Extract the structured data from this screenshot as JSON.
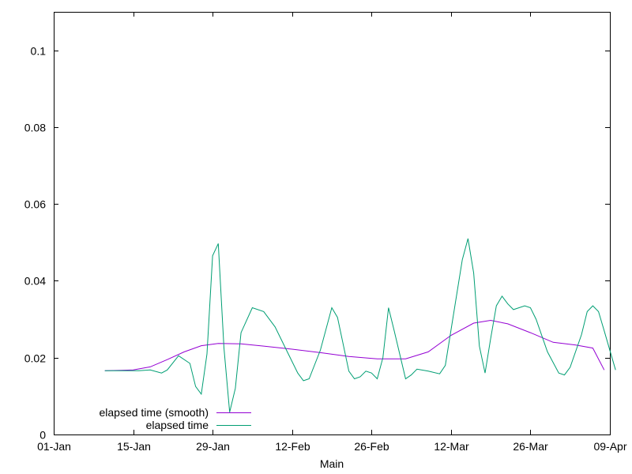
{
  "chart_data": {
    "type": "line",
    "title": "",
    "xlabel": "Main",
    "ylabel": "",
    "xlim": [
      "2021-01-01",
      "2021-04-09"
    ],
    "ylim": [
      0,
      0.11
    ],
    "x_tick_labels": [
      "01-Jan",
      "15-Jan",
      "29-Jan",
      "12-Feb",
      "26-Feb",
      "12-Mar",
      "26-Mar",
      "09-Apr"
    ],
    "x_ticks": [
      "2021-01-01",
      "2021-01-15",
      "2021-01-29",
      "2021-02-12",
      "2021-02-26",
      "2021-03-12",
      "2021-03-26",
      "2021-04-09"
    ],
    "y_tick_labels": [
      "0",
      "0.02",
      "0.04",
      "0.06",
      "0.08",
      "0.1"
    ],
    "y_ticks": [
      0,
      0.02,
      0.04,
      0.06,
      0.08,
      0.1
    ],
    "grid": false,
    "legend_position": "bottom-left",
    "series": [
      {
        "name": "elapsed time (smooth)",
        "color": "#9400d3",
        "points": [
          [
            "2021-01-10",
            0.0166
          ],
          [
            "2021-01-13",
            0.0167
          ],
          [
            "2021-01-15",
            0.0168
          ],
          [
            "2021-01-18",
            0.0176
          ],
          [
            "2021-01-21",
            0.0195
          ],
          [
            "2021-01-24",
            0.0215
          ],
          [
            "2021-01-27",
            0.0231
          ],
          [
            "2021-01-30",
            0.0237
          ],
          [
            "2021-02-03",
            0.0236
          ],
          [
            "2021-02-07",
            0.023
          ],
          [
            "2021-02-12",
            0.0222
          ],
          [
            "2021-02-17",
            0.0213
          ],
          [
            "2021-02-22",
            0.0203
          ],
          [
            "2021-02-27",
            0.0197
          ],
          [
            "2021-03-04",
            0.0197
          ],
          [
            "2021-03-08",
            0.0215
          ],
          [
            "2021-03-12",
            0.0258
          ],
          [
            "2021-03-16",
            0.029
          ],
          [
            "2021-03-19",
            0.0297
          ],
          [
            "2021-03-22",
            0.0288
          ],
          [
            "2021-03-26",
            0.0265
          ],
          [
            "2021-03-30",
            0.024
          ],
          [
            "2021-04-03",
            0.0233
          ],
          [
            "2021-04-06",
            0.0225
          ],
          [
            "2021-04-08",
            0.0168
          ]
        ]
      },
      {
        "name": "elapsed time",
        "color": "#009e73",
        "points": [
          [
            "2021-01-10",
            0.0166
          ],
          [
            "2021-01-16",
            0.0166
          ],
          [
            "2021-01-18",
            0.0168
          ],
          [
            "2021-01-20",
            0.016
          ],
          [
            "2021-01-21",
            0.0168
          ],
          [
            "2021-01-23",
            0.0205
          ],
          [
            "2021-01-25",
            0.0185
          ],
          [
            "2021-01-26",
            0.0125
          ],
          [
            "2021-01-27",
            0.0105
          ],
          [
            "2021-01-28",
            0.021
          ],
          [
            "2021-01-29",
            0.0465
          ],
          [
            "2021-01-30",
            0.0497
          ],
          [
            "2021-01-31",
            0.0225
          ],
          [
            "2021-02-01",
            0.0058
          ],
          [
            "2021-02-02",
            0.012
          ],
          [
            "2021-02-03",
            0.0265
          ],
          [
            "2021-02-05",
            0.033
          ],
          [
            "2021-02-07",
            0.032
          ],
          [
            "2021-02-09",
            0.028
          ],
          [
            "2021-02-11",
            0.022
          ],
          [
            "2021-02-13",
            0.016
          ],
          [
            "2021-02-14",
            0.014
          ],
          [
            "2021-02-15",
            0.0145
          ],
          [
            "2021-02-17",
            0.022
          ],
          [
            "2021-02-19",
            0.033
          ],
          [
            "2021-02-20",
            0.0305
          ],
          [
            "2021-02-22",
            0.0165
          ],
          [
            "2021-02-23",
            0.0145
          ],
          [
            "2021-02-24",
            0.015
          ],
          [
            "2021-02-25",
            0.0165
          ],
          [
            "2021-02-26",
            0.016
          ],
          [
            "2021-02-27",
            0.0145
          ],
          [
            "2021-02-28",
            0.02
          ],
          [
            "2021-03-01",
            0.033
          ],
          [
            "2021-03-02",
            0.027
          ],
          [
            "2021-03-04",
            0.0145
          ],
          [
            "2021-03-05",
            0.0155
          ],
          [
            "2021-03-06",
            0.017
          ],
          [
            "2021-03-08",
            0.0165
          ],
          [
            "2021-03-10",
            0.0158
          ],
          [
            "2021-03-11",
            0.018
          ],
          [
            "2021-03-14",
            0.0455
          ],
          [
            "2021-03-15",
            0.051
          ],
          [
            "2021-03-16",
            0.042
          ],
          [
            "2021-03-17",
            0.023
          ],
          [
            "2021-03-18",
            0.016
          ],
          [
            "2021-03-19",
            0.025
          ],
          [
            "2021-03-20",
            0.0335
          ],
          [
            "2021-03-21",
            0.036
          ],
          [
            "2021-03-22",
            0.034
          ],
          [
            "2021-03-23",
            0.0325
          ],
          [
            "2021-03-25",
            0.0335
          ],
          [
            "2021-03-26",
            0.033
          ],
          [
            "2021-03-27",
            0.03
          ],
          [
            "2021-03-29",
            0.0215
          ],
          [
            "2021-03-31",
            0.016
          ],
          [
            "2021-04-01",
            0.0155
          ],
          [
            "2021-04-02",
            0.0175
          ],
          [
            "2021-04-04",
            0.026
          ],
          [
            "2021-04-05",
            0.032
          ],
          [
            "2021-04-06",
            0.0335
          ],
          [
            "2021-04-07",
            0.032
          ],
          [
            "2021-04-08",
            0.027
          ],
          [
            "2021-04-10",
            0.0168
          ]
        ]
      }
    ]
  }
}
